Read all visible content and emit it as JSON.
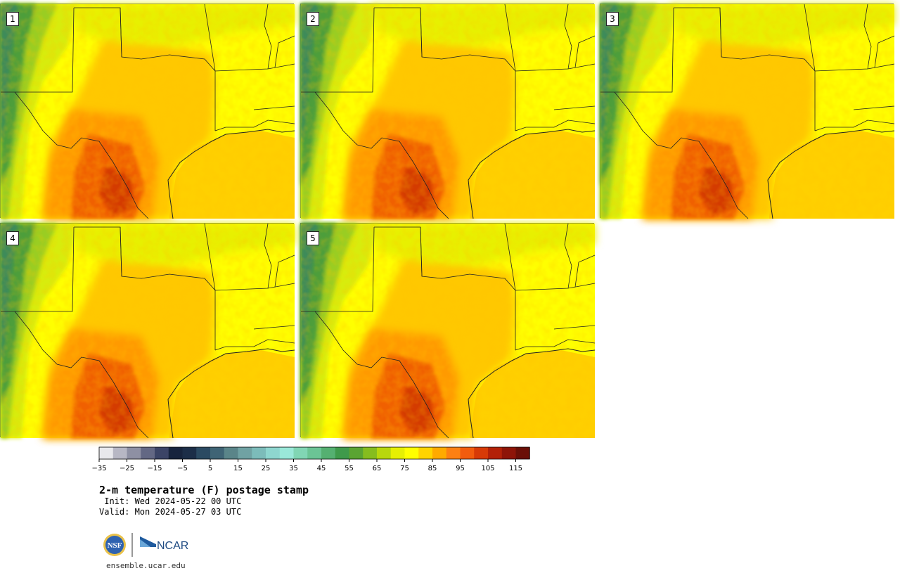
{
  "panels": [
    {
      "label": "1"
    },
    {
      "label": "2"
    },
    {
      "label": "3"
    },
    {
      "label": "4"
    },
    {
      "label": "5"
    }
  ],
  "colorbar": {
    "colors": [
      "#e8e8ec",
      "#b7b7c4",
      "#8e90a3",
      "#636884",
      "#3b4466",
      "#17243d",
      "#1c2e48",
      "#2b4a62",
      "#3f6475",
      "#5a8589",
      "#70a2a3",
      "#7cbcba",
      "#8ed6cf",
      "#9ae8d9",
      "#81d6b4",
      "#6bc495",
      "#55b071",
      "#3f9a4b",
      "#5aa432",
      "#86bd1e",
      "#b8d70c",
      "#e6ef03",
      "#ffff00",
      "#ffd400",
      "#ffaa00",
      "#fd8012",
      "#f25c0d",
      "#d73a07",
      "#b32108",
      "#8e1408",
      "#6a0f07"
    ],
    "ticks": [
      "−35",
      "−25",
      "−15",
      "−5",
      "5",
      "15",
      "25",
      "35",
      "45",
      "55",
      "65",
      "75",
      "85",
      "95",
      "105",
      "115"
    ]
  },
  "title": "2-m temperature (F) postage stamp",
  "init": " Init: Wed 2024-05-22 00 UTC",
  "valid": "Valid: Mon 2024-05-27 03 UTC",
  "logos": {
    "nsf": "NSF",
    "ncar": "NCAR"
  },
  "website": "ensemble.ucar.edu"
}
